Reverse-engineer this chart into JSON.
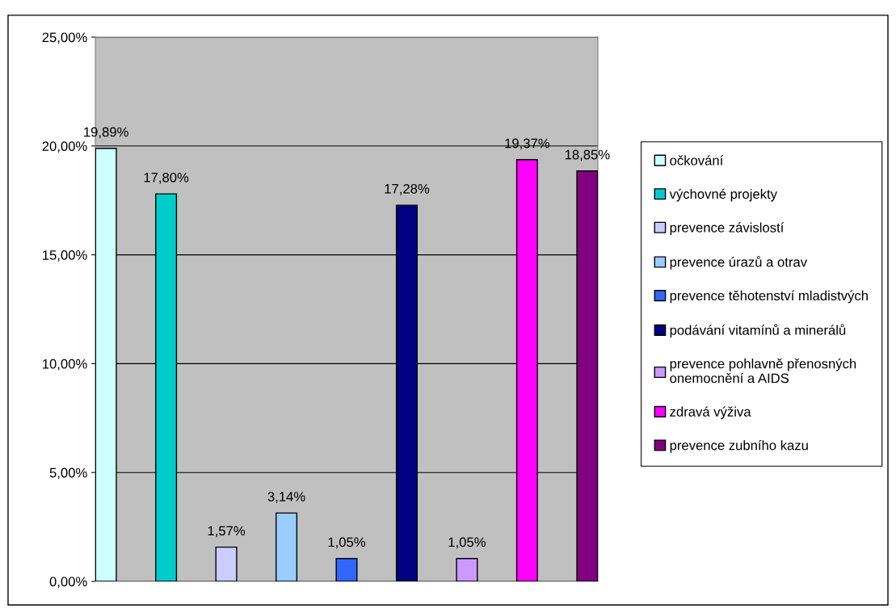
{
  "chart_data": {
    "type": "bar",
    "categories": [
      null
    ],
    "series": [
      {
        "name": "očkování",
        "color": "#ccffff",
        "values": [
          19.89
        ],
        "value_labels": [
          "19,89%"
        ]
      },
      {
        "name": "výchovné projekty",
        "color": "#00cccc",
        "values": [
          17.8
        ],
        "value_labels": [
          "17,80%"
        ]
      },
      {
        "name": "prevence závislostí",
        "color": "#ccccff",
        "values": [
          1.57
        ],
        "value_labels": [
          "1,57%"
        ]
      },
      {
        "name": "prevence úrazů a otrav",
        "color": "#99ccff",
        "values": [
          3.14
        ],
        "value_labels": [
          "3,14%"
        ]
      },
      {
        "name": "prevence těhotenství mladistvých",
        "color": "#3366ff",
        "values": [
          1.05
        ],
        "value_labels": [
          "1,05%"
        ]
      },
      {
        "name": "podávání vitamínů a minerálů",
        "color": "#000080",
        "values": [
          17.28
        ],
        "value_labels": [
          "17,28%"
        ]
      },
      {
        "name": "prevence pohlavně přenosných\nonemocnění a AIDS",
        "color": "#cc99ff",
        "values": [
          1.05
        ],
        "value_labels": [
          "1,05%"
        ]
      },
      {
        "name": "zdravá výživa",
        "color": "#ff00ff",
        "values": [
          19.37
        ],
        "value_labels": [
          "19,37%"
        ]
      },
      {
        "name": "prevence zubního kazu",
        "color": "#800080",
        "values": [
          18.85
        ],
        "value_labels": [
          "18,85%"
        ]
      }
    ],
    "ylim": [
      0,
      25
    ],
    "yticks": [
      {
        "value": 0,
        "label": "0,00%"
      },
      {
        "value": 5,
        "label": "5,00%"
      },
      {
        "value": 10,
        "label": "10,00%"
      },
      {
        "value": 15,
        "label": "15,00%"
      },
      {
        "value": 20,
        "label": "20,00%"
      },
      {
        "value": 25,
        "label": "25,00%"
      }
    ],
    "grid": "y",
    "legend": "right"
  }
}
